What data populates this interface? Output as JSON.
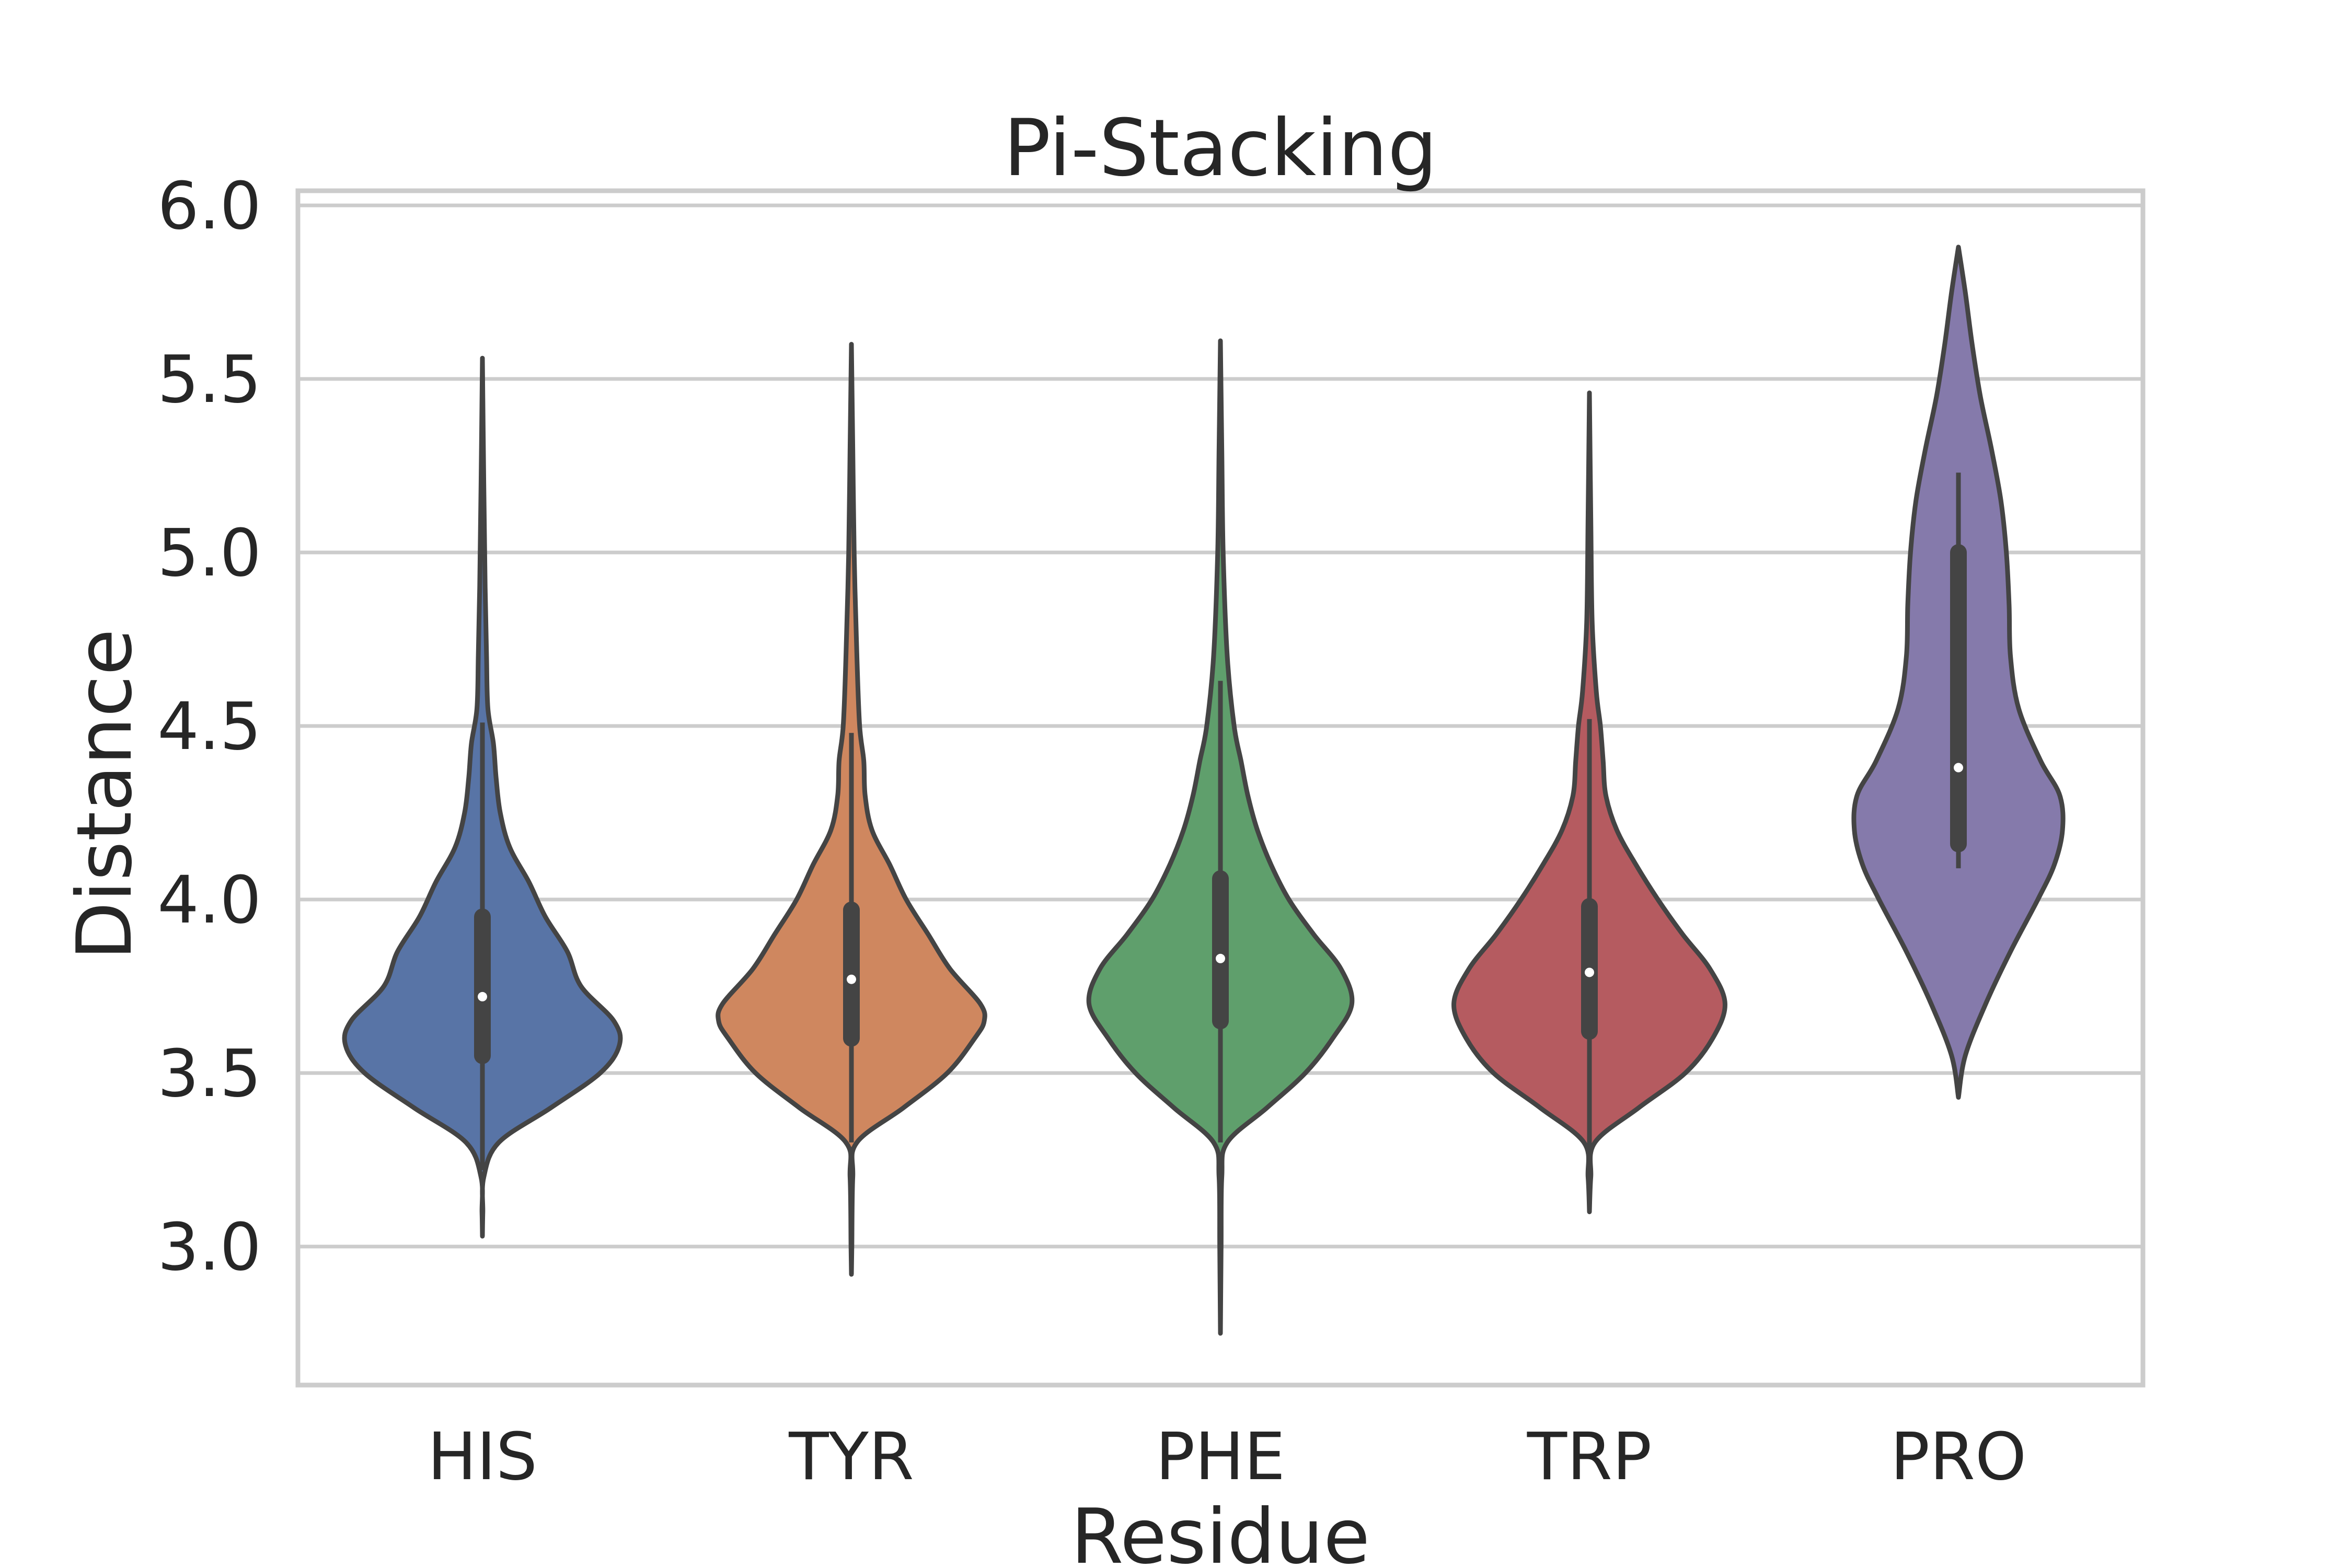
{
  "chart_data": {
    "type": "violin",
    "title": "Pi-Stacking",
    "xlabel": "Residue",
    "ylabel": "Distance",
    "ylim": [
      2.6,
      6.05
    ],
    "yticks": [
      3.0,
      3.5,
      4.0,
      4.5,
      5.0,
      5.5,
      6.0
    ],
    "ytick_labels": [
      "3.0",
      "3.5",
      "4.0",
      "4.5",
      "5.0",
      "5.5",
      "6.0"
    ],
    "grid": true,
    "categories": [
      "HIS",
      "TYR",
      "PHE",
      "TRP",
      "PRO"
    ],
    "colors": [
      "#5874a6",
      "#cf875f",
      "#5f9f6c",
      "#b55b60",
      "#857aab"
    ],
    "series": [
      {
        "category": "HIS",
        "min": 3.03,
        "q1": 3.55,
        "median": 3.72,
        "q3": 3.95,
        "max": 5.56,
        "whisker_low": 3.22,
        "whisker_high": 4.51,
        "profile": [
          [
            3.03,
            0.0
          ],
          [
            3.1,
            0.003
          ],
          [
            3.2,
            0.01
          ],
          [
            3.3,
            0.12
          ],
          [
            3.4,
            0.5
          ],
          [
            3.5,
            0.86
          ],
          [
            3.58,
            1.0
          ],
          [
            3.65,
            0.96
          ],
          [
            3.75,
            0.72
          ],
          [
            3.85,
            0.62
          ],
          [
            3.95,
            0.46
          ],
          [
            4.05,
            0.34
          ],
          [
            4.15,
            0.2
          ],
          [
            4.25,
            0.13
          ],
          [
            4.35,
            0.1
          ],
          [
            4.45,
            0.08
          ],
          [
            4.55,
            0.04
          ],
          [
            4.7,
            0.03
          ],
          [
            4.9,
            0.02
          ],
          [
            5.2,
            0.01
          ],
          [
            5.56,
            0.0
          ]
        ]
      },
      {
        "category": "TYR",
        "min": 2.92,
        "q1": 3.6,
        "median": 3.77,
        "q3": 3.97,
        "max": 5.6,
        "whisker_low": 3.3,
        "whisker_high": 4.48,
        "profile": [
          [
            2.92,
            0.0
          ],
          [
            3.0,
            0.003
          ],
          [
            3.2,
            0.01
          ],
          [
            3.3,
            0.04
          ],
          [
            3.4,
            0.38
          ],
          [
            3.5,
            0.7
          ],
          [
            3.6,
            0.9
          ],
          [
            3.65,
            0.97
          ],
          [
            3.7,
            0.94
          ],
          [
            3.8,
            0.72
          ],
          [
            3.9,
            0.56
          ],
          [
            4.0,
            0.4
          ],
          [
            4.1,
            0.28
          ],
          [
            4.2,
            0.15
          ],
          [
            4.3,
            0.1
          ],
          [
            4.4,
            0.09
          ],
          [
            4.5,
            0.06
          ],
          [
            4.7,
            0.04
          ],
          [
            5.0,
            0.02
          ],
          [
            5.3,
            0.01
          ],
          [
            5.6,
            0.0
          ]
        ]
      },
      {
        "category": "PHE",
        "min": 2.75,
        "q1": 3.65,
        "median": 3.83,
        "q3": 4.06,
        "max": 5.61,
        "whisker_low": 3.3,
        "whisker_high": 4.63,
        "profile": [
          [
            2.75,
            0.0
          ],
          [
            3.0,
            0.005
          ],
          [
            3.2,
            0.01
          ],
          [
            3.3,
            0.05
          ],
          [
            3.4,
            0.34
          ],
          [
            3.5,
            0.62
          ],
          [
            3.6,
            0.82
          ],
          [
            3.7,
            0.96
          ],
          [
            3.8,
            0.88
          ],
          [
            3.9,
            0.68
          ],
          [
            4.0,
            0.5
          ],
          [
            4.1,
            0.37
          ],
          [
            4.2,
            0.27
          ],
          [
            4.3,
            0.2
          ],
          [
            4.4,
            0.15
          ],
          [
            4.5,
            0.1
          ],
          [
            4.7,
            0.05
          ],
          [
            5.0,
            0.02
          ],
          [
            5.3,
            0.01
          ],
          [
            5.61,
            0.0
          ]
        ]
      },
      {
        "category": "TRP",
        "min": 3.1,
        "q1": 3.62,
        "median": 3.79,
        "q3": 3.98,
        "max": 5.46,
        "whisker_low": 3.28,
        "whisker_high": 4.52,
        "profile": [
          [
            3.1,
            0.0
          ],
          [
            3.2,
            0.01
          ],
          [
            3.3,
            0.04
          ],
          [
            3.4,
            0.36
          ],
          [
            3.5,
            0.7
          ],
          [
            3.6,
            0.9
          ],
          [
            3.7,
            0.99
          ],
          [
            3.8,
            0.88
          ],
          [
            3.9,
            0.68
          ],
          [
            4.0,
            0.5
          ],
          [
            4.1,
            0.34
          ],
          [
            4.2,
            0.2
          ],
          [
            4.3,
            0.12
          ],
          [
            4.4,
            0.1
          ],
          [
            4.5,
            0.08
          ],
          [
            4.6,
            0.05
          ],
          [
            4.8,
            0.02
          ],
          [
            5.1,
            0.01
          ],
          [
            5.46,
            0.0
          ]
        ]
      },
      {
        "category": "PRO",
        "min": 3.43,
        "q1": 4.16,
        "median": 4.38,
        "q3": 5.0,
        "max": 5.88,
        "whisker_low": 4.09,
        "whisker_high": 5.23,
        "profile": [
          [
            3.43,
            0.0
          ],
          [
            3.55,
            0.05
          ],
          [
            3.7,
            0.2
          ],
          [
            3.85,
            0.38
          ],
          [
            4.0,
            0.58
          ],
          [
            4.1,
            0.7
          ],
          [
            4.2,
            0.76
          ],
          [
            4.3,
            0.74
          ],
          [
            4.4,
            0.6
          ],
          [
            4.55,
            0.44
          ],
          [
            4.7,
            0.38
          ],
          [
            4.85,
            0.37
          ],
          [
            5.0,
            0.35
          ],
          [
            5.15,
            0.31
          ],
          [
            5.3,
            0.24
          ],
          [
            5.45,
            0.16
          ],
          [
            5.6,
            0.1
          ],
          [
            5.75,
            0.05
          ],
          [
            5.88,
            0.0
          ]
        ]
      }
    ]
  }
}
